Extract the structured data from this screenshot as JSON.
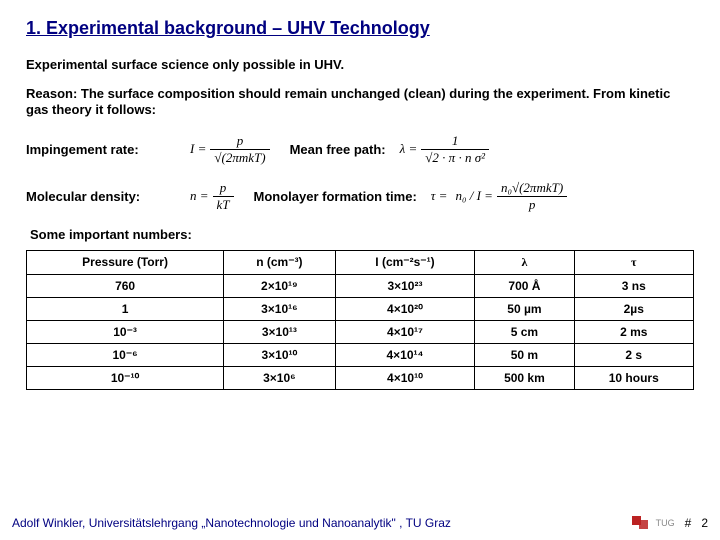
{
  "title": "1. Experimental background – UHV Technology",
  "intro": "Experimental surface science only possible in UHV.",
  "reason": "Reason: The surface composition should remain unchanged (clean) during the experiment. From kinetic gas theory it follows:",
  "labels": {
    "impingement": "Impingement rate:",
    "meanfree": "Mean free path:",
    "moldensity": "Molecular density:",
    "monolayer": "Monolayer formation time:"
  },
  "formulas": {
    "I": {
      "lhs": "I =",
      "num": "p",
      "den": "√(2πmkT)"
    },
    "lambda": {
      "lhs": "λ =",
      "num": "1",
      "den": "√2 · π · n σ²"
    },
    "n": {
      "lhs": "n =",
      "num": "p",
      "den": "kT"
    },
    "tau": {
      "lhs": "τ =",
      "mid": "n₀ / I =",
      "num": "n₀√(2πmkT)",
      "den": "p"
    }
  },
  "subhead": "Some important numbers:",
  "table": {
    "headers": [
      "Pressure (Torr)",
      "n (cm⁻³)",
      "I (cm⁻²s⁻¹)",
      "λ",
      "τ"
    ],
    "rows": [
      [
        "760",
        "2×10¹⁹",
        "3×10²³",
        "700 Å",
        "3 ns"
      ],
      [
        "1",
        "3×10¹⁶",
        "4×10²⁰",
        "50 µm",
        "2µs"
      ],
      [
        "10⁻³",
        "3×10¹³",
        "4×10¹⁷",
        "5 cm",
        "2 ms"
      ],
      [
        "10⁻⁶",
        "3×10¹⁰",
        "4×10¹⁴",
        "50 m",
        "2 s"
      ],
      [
        "10⁻¹⁰",
        "3×10⁶",
        "4×10¹⁰",
        "500 km",
        "10 hours"
      ]
    ]
  },
  "footer": {
    "text": "Adolf Winkler, Universitätslehrgang „Nanotechnologie und Nanoanalytik\" , TU Graz",
    "tug": "TUG",
    "hash": "#",
    "page": "2"
  }
}
